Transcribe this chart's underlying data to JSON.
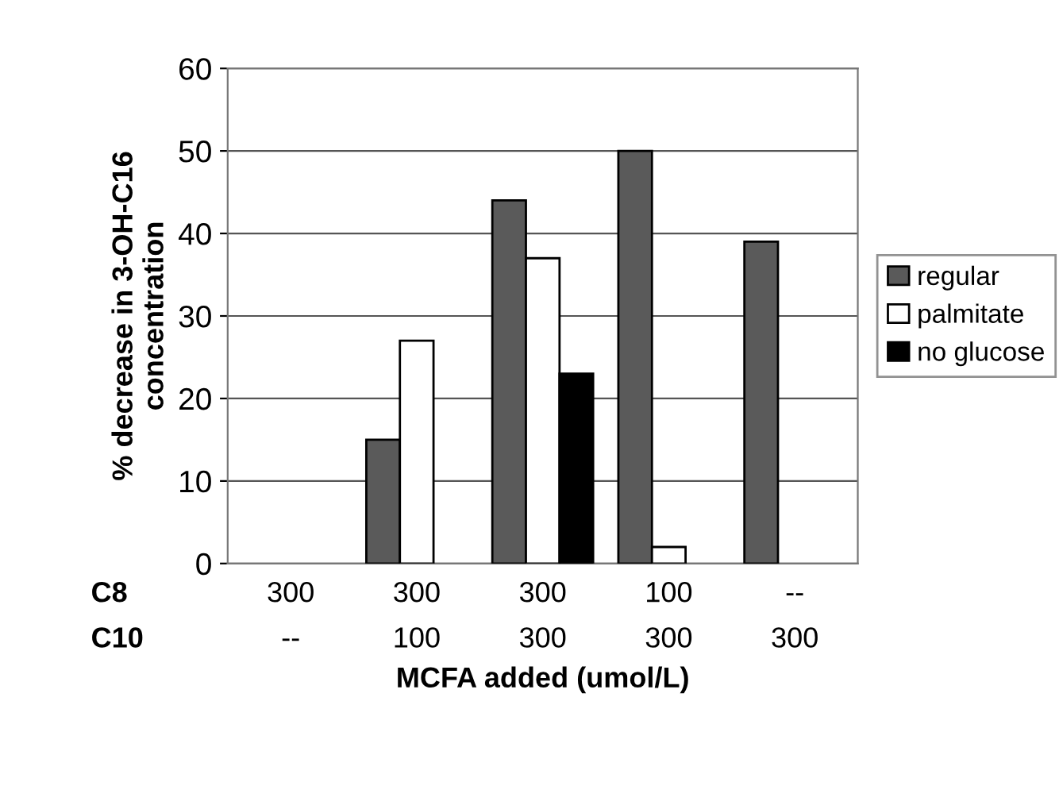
{
  "chart_data": {
    "type": "bar",
    "xlabel": "MCFA added (umol/L)",
    "ylabel": "% decrease in 3-OH-C16\nconcentration",
    "categories": [
      "300\n--",
      "300\n100",
      "300\n300",
      "100\n300",
      "--\n300"
    ],
    "series": [
      {
        "name": "regular",
        "color": "#5a5a5a",
        "values": [
          null,
          15,
          44,
          50,
          39
        ]
      },
      {
        "name": "palmitate",
        "color": "#ffffff",
        "values": [
          null,
          27,
          37,
          2,
          null
        ]
      },
      {
        "name": "no glucose",
        "color": "#000000",
        "values": [
          null,
          null,
          23,
          null,
          null
        ]
      }
    ],
    "ylim": [
      0,
      60
    ],
    "yticks": [
      0,
      10,
      20,
      30,
      40,
      50,
      60
    ],
    "grid": "y",
    "legend": "right",
    "annotations": [
      "C8\nC10"
    ]
  }
}
